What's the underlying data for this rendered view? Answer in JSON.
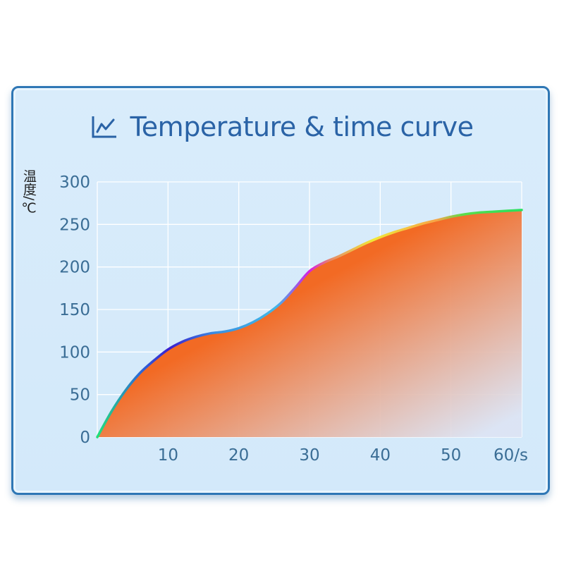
{
  "title": "Temperature & time curve",
  "title_icon": "line-chart-icon",
  "ylabel": "温度/℃",
  "chart_data": {
    "type": "area",
    "title": "Temperature & time curve",
    "ylabel": "温度/℃",
    "xlabel": "",
    "xlim": [
      0,
      60
    ],
    "ylim": [
      0,
      300
    ],
    "x_ticks": [
      10,
      20,
      30,
      40,
      50,
      60
    ],
    "x_tick_labels": [
      "10",
      "20",
      "30",
      "40",
      "50",
      "60/s"
    ],
    "y_ticks": [
      0,
      50,
      100,
      150,
      200,
      250,
      300
    ],
    "y_tick_labels": [
      "0",
      "50",
      "100",
      "150",
      "200",
      "250",
      "300"
    ],
    "grid": true,
    "x": [
      0,
      2,
      4,
      6,
      8,
      10,
      12,
      14,
      16,
      18,
      20,
      22,
      24,
      26,
      28,
      30,
      32,
      34,
      36,
      38,
      40,
      42,
      44,
      46,
      48,
      50,
      52,
      54,
      56,
      58,
      60
    ],
    "y": [
      0,
      30,
      55,
      75,
      90,
      103,
      112,
      118,
      122,
      124,
      128,
      135,
      145,
      158,
      176,
      195,
      205,
      212,
      220,
      228,
      235,
      241,
      246,
      251,
      255,
      259,
      262,
      264,
      265,
      266,
      267
    ]
  },
  "colors": {
    "card_border": "#2f77b5",
    "card_fill": "#d6eafb",
    "title_text": "#2a63a6",
    "tick_text": "#3a6d95",
    "area_top": "#f26a24",
    "area_bottom": "#dfe3f3",
    "grid": "#ffffff"
  }
}
